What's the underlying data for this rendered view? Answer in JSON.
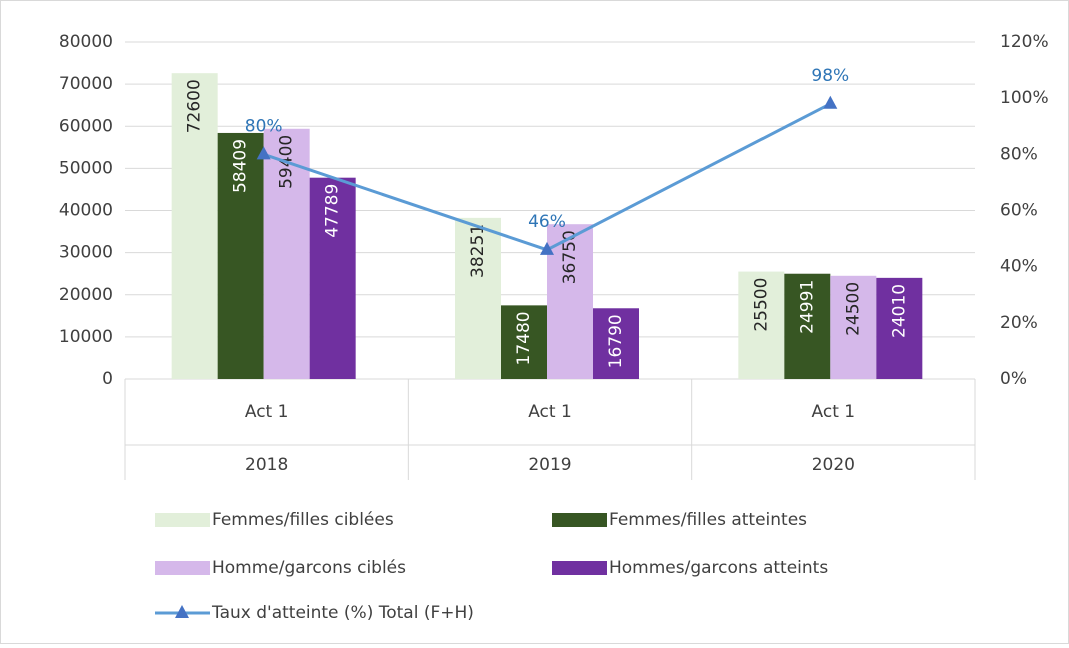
{
  "chart_data": {
    "type": "bar",
    "categories": [
      "Act 1",
      "Act 1",
      "Act 1"
    ],
    "groups": [
      "2018",
      "2019",
      "2020"
    ],
    "series": [
      {
        "name": "Femmes/filles ciblées",
        "color": "#e2efda",
        "label_color": "#262626",
        "values": [
          72600,
          38251,
          25500
        ]
      },
      {
        "name": "Femmes/filles atteintes",
        "color": "#375623",
        "label_color": "#ffffff",
        "values": [
          58409,
          17480,
          24991
        ]
      },
      {
        "name": "Homme/garcons ciblés",
        "color": "#d5b8ea",
        "label_color": "#262626",
        "values": [
          59400,
          36750,
          24500
        ]
      },
      {
        "name": "Hommes/garcons atteints",
        "color": "#7030a0",
        "label_color": "#ffffff",
        "values": [
          47789,
          16790,
          24010
        ]
      },
      {
        "name": "Taux d'atteinte (%) Total (F+H)",
        "type": "line",
        "axis": "y2",
        "color": "#5b9bd5",
        "label_color": "#2e75b6",
        "values": [
          80,
          46,
          98
        ],
        "value_labels": [
          "80%",
          "46%",
          "98%"
        ]
      }
    ],
    "ylim": [
      0,
      80000
    ],
    "yticks": [
      0,
      10000,
      20000,
      30000,
      40000,
      50000,
      60000,
      70000,
      80000
    ],
    "y2lim": [
      0,
      120
    ],
    "y2ticks": [
      {
        "value": 0,
        "label": "0%"
      },
      {
        "value": 20,
        "label": "20%"
      },
      {
        "value": 40,
        "label": "40%"
      },
      {
        "value": 60,
        "label": "60%"
      },
      {
        "value": 80,
        "label": "80%"
      },
      {
        "value": 100,
        "label": "100%"
      },
      {
        "value": 120,
        "label": "120%"
      }
    ],
    "grid": true
  }
}
